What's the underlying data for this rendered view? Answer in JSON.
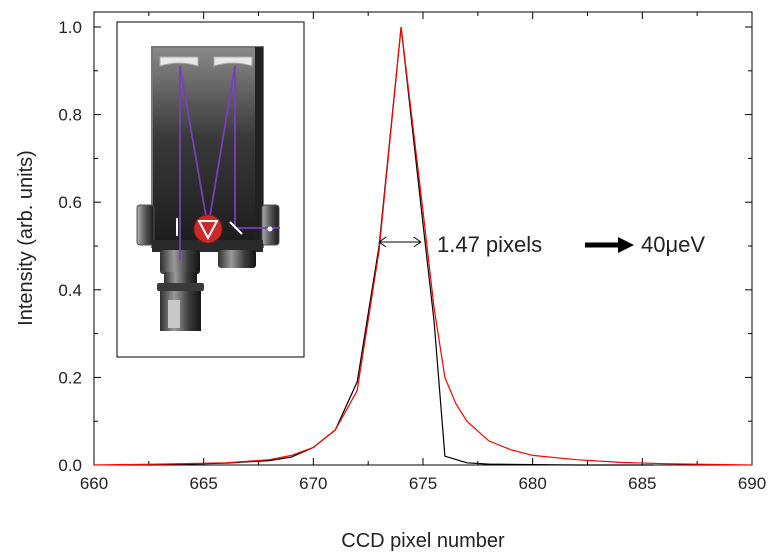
{
  "chart_data": {
    "type": "line",
    "xlabel": "CCD pixel number",
    "ylabel": "Intensity (arb. units)",
    "xlim": [
      660,
      690
    ],
    "ylim": [
      0.0,
      1.05
    ],
    "xticks": [
      660,
      665,
      670,
      675,
      680,
      685,
      690
    ],
    "yticks": [
      0.0,
      0.2,
      0.4,
      0.6,
      0.8,
      1.0
    ],
    "xtick_labels": [
      "660",
      "665",
      "670",
      "675",
      "680",
      "685",
      "690"
    ],
    "ytick_labels": [
      "0.0",
      "0.2",
      "0.4",
      "0.6",
      "0.8",
      "1.0"
    ],
    "grid": false,
    "series": [
      {
        "color": "#000000",
        "x": [
          662.5,
          664,
          666,
          668,
          669,
          670,
          671,
          672,
          673,
          674,
          675,
          675.5,
          676,
          677,
          678,
          680,
          682,
          685.5
        ],
        "y": [
          0.0,
          0.002,
          0.004,
          0.01,
          0.018,
          0.04,
          0.08,
          0.19,
          0.5,
          1.0,
          0.55,
          0.33,
          0.02,
          0.005,
          0.002,
          0.001,
          0.0,
          0.0
        ]
      },
      {
        "color": "#ff0000",
        "x": [
          660,
          663,
          666,
          668,
          669,
          670,
          671,
          672,
          673,
          674,
          675,
          675.5,
          676,
          676.5,
          677,
          678,
          679,
          680,
          682,
          684,
          686,
          690
        ],
        "y": [
          0.0,
          0.002,
          0.005,
          0.012,
          0.022,
          0.04,
          0.08,
          0.17,
          0.49,
          1.0,
          0.58,
          0.36,
          0.2,
          0.14,
          0.1,
          0.055,
          0.035,
          0.022,
          0.012,
          0.006,
          0.003,
          0.0
        ]
      }
    ],
    "annotations": [
      {
        "text": "1.47 pixels",
        "x_from": 673.0,
        "x_to": 674.9,
        "y": 0.5
      },
      {
        "text": "40μeV"
      }
    ]
  },
  "inset": {
    "description_icon": "spectrometer-schematic-icon"
  }
}
